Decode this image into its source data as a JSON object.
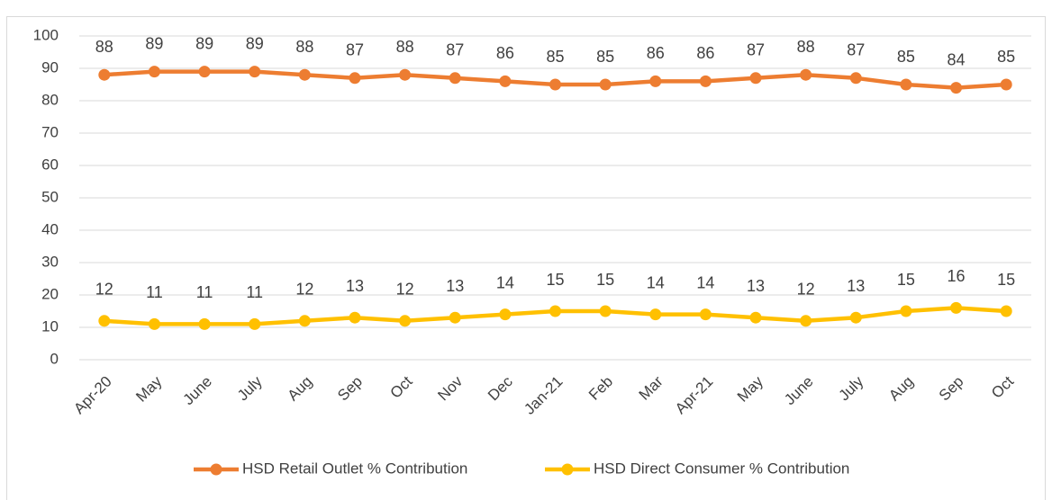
{
  "chart_data": {
    "type": "line",
    "categories": [
      "Apr-20",
      "May",
      "June",
      "July",
      "Aug",
      "Sep",
      "Oct",
      "Nov",
      "Dec",
      "Jan-21",
      "Feb",
      "Mar",
      "Apr-21",
      "May",
      "June",
      "July",
      "Aug",
      "Sep",
      "Oct"
    ],
    "series": [
      {
        "name": "HSD Retail Outlet % Contribution",
        "color": "#ed7d31",
        "values": [
          88,
          89,
          89,
          89,
          88,
          87,
          88,
          87,
          86,
          85,
          85,
          86,
          86,
          87,
          88,
          87,
          85,
          84,
          85
        ]
      },
      {
        "name": "HSD Direct Consumer % Contribution",
        "color": "#ffc000",
        "values": [
          12,
          11,
          11,
          11,
          12,
          13,
          12,
          13,
          14,
          15,
          15,
          14,
          14,
          13,
          12,
          13,
          15,
          16,
          15
        ]
      }
    ],
    "ylim": [
      0,
      100
    ],
    "yticks": [
      0,
      10,
      20,
      30,
      40,
      50,
      60,
      70,
      80,
      90,
      100
    ],
    "grid": true,
    "legend": "bottom"
  }
}
